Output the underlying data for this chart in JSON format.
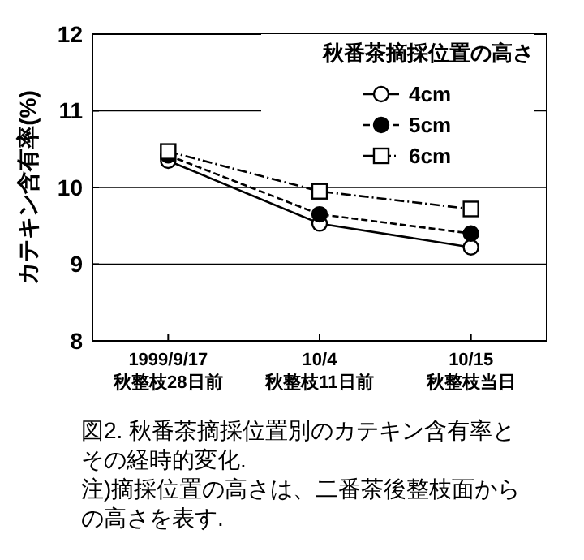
{
  "chart_data": {
    "type": "line",
    "ylabel": "カテキン含有率(%)",
    "legend_title": "秋番茶摘採位置の高さ",
    "legend": "top right",
    "grid": "y",
    "ylim": [
      8,
      12
    ],
    "yticks": [
      8,
      9,
      10,
      11,
      12
    ],
    "categories": [
      "1999/9/17\n秋整枝28日前",
      "10/4\n秋整枝11日前",
      "10/15\n秋整枝当日"
    ],
    "series": [
      {
        "name": "4cm",
        "color": "#ffffff",
        "marker": "circle",
        "line_style": "solid",
        "values": [
          10.35,
          9.53,
          9.22
        ]
      },
      {
        "name": "5cm",
        "color": "#000000",
        "marker": "circle",
        "line_style": "dashed",
        "values": [
          10.42,
          9.65,
          9.4
        ]
      },
      {
        "name": "6cm",
        "color": "#ffffff",
        "marker": "square",
        "line_style": "dashdot",
        "values": [
          10.47,
          9.95,
          9.72
        ]
      }
    ],
    "annotations": [
      "図2. 秋番茶摘採位置別のカテキン含有率とその経時的変化.",
      "注)摘採位置の高さは、二番茶後整枝面からの高さを表す."
    ]
  }
}
